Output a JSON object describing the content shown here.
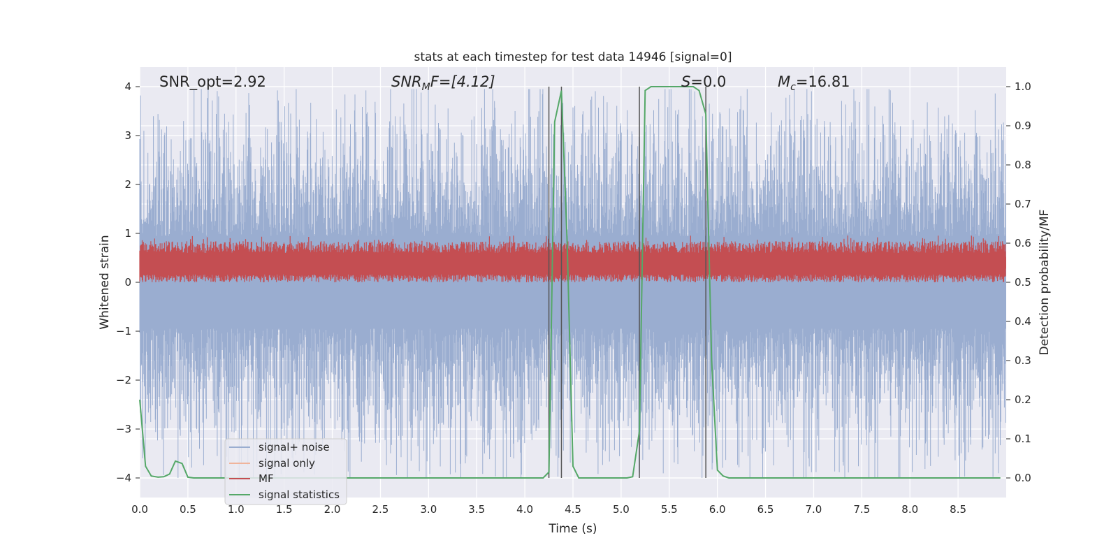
{
  "chart_data": {
    "type": "line",
    "title": "stats at each timestep for test data 14946 [signal=0]",
    "xlabel": "Time (s)",
    "ylabel": "Whitened strain",
    "y2label": "Detection probability/MF",
    "xlim": [
      0.0,
      9.0
    ],
    "ylim": [
      -4.4,
      4.4
    ],
    "y2lim": [
      -0.05,
      1.05
    ],
    "x_ticks": [
      "0.0",
      "0.5",
      "1.0",
      "1.5",
      "2.0",
      "2.5",
      "3.0",
      "3.5",
      "4.0",
      "4.5",
      "5.0",
      "5.5",
      "6.0",
      "6.5",
      "7.0",
      "7.5",
      "8.0",
      "8.5"
    ],
    "y_ticks": [
      "4",
      "3",
      "2",
      "1",
      "0",
      "−1",
      "−2",
      "−3",
      "−4"
    ],
    "y2_ticks": [
      "1.0",
      "0.9",
      "0.8",
      "0.7",
      "0.6",
      "0.5",
      "0.4",
      "0.3",
      "0.2",
      "0.1",
      "0.0"
    ],
    "grid": true,
    "legend_placement": "lower-left",
    "annotations": {
      "snr_opt": "SNR_opt=2.92",
      "snr_mf_label": "SNR",
      "snr_mf_sub": "M",
      "snr_mf_rest": "F=[4.12]",
      "s_label": "S",
      "s_rest": "=0.0",
      "mc_label": "M",
      "mc_sub": "c",
      "mc_rest": "=16.81"
    },
    "vertical_lines_x": [
      4.25,
      4.38,
      5.19,
      5.88
    ],
    "series": [
      {
        "name": "signal+ noise",
        "color": "#9aadd0",
        "axis": "left",
        "noise_envelope": {
          "mean": 0.0,
          "typical_peak": 2.3,
          "max_peak": 3.95,
          "min_peak": -4.0
        }
      },
      {
        "name": "signal only",
        "color": "#f0b49b",
        "axis": "left",
        "values": []
      },
      {
        "name": "MF",
        "color": "#c44e52",
        "axis": "right",
        "band": {
          "low": 0.52,
          "high": 0.59,
          "max": 0.62
        }
      },
      {
        "name": "signal statistics",
        "color": "#55a868",
        "axis": "right",
        "x": [
          0.0,
          0.06,
          0.12,
          0.19,
          0.25,
          0.31,
          0.37,
          0.44,
          0.5,
          0.56,
          1.0,
          2.0,
          3.0,
          4.0,
          4.19,
          4.25,
          4.31,
          4.38,
          4.44,
          4.5,
          4.56,
          4.62,
          4.69,
          5.0,
          5.06,
          5.12,
          5.19,
          5.25,
          5.31,
          5.38,
          5.44,
          5.5,
          5.62,
          5.75,
          5.81,
          5.88,
          5.94,
          6.0,
          6.06,
          6.12,
          6.5,
          7.0,
          8.0,
          8.94
        ],
        "y": [
          0.2,
          0.03,
          0.005,
          0.002,
          0.003,
          0.01,
          0.043,
          0.037,
          0.002,
          0.0,
          0.0,
          0.0,
          0.0,
          0.0,
          0.0,
          0.015,
          0.91,
          0.99,
          0.6,
          0.03,
          0.0,
          0.0,
          0.0,
          0.0,
          0.0,
          0.003,
          0.12,
          0.99,
          1.0,
          1.0,
          1.0,
          1.0,
          1.0,
          1.0,
          0.99,
          0.93,
          0.3,
          0.02,
          0.005,
          0.0,
          0.0,
          0.0,
          0.0,
          0.0
        ]
      }
    ]
  }
}
